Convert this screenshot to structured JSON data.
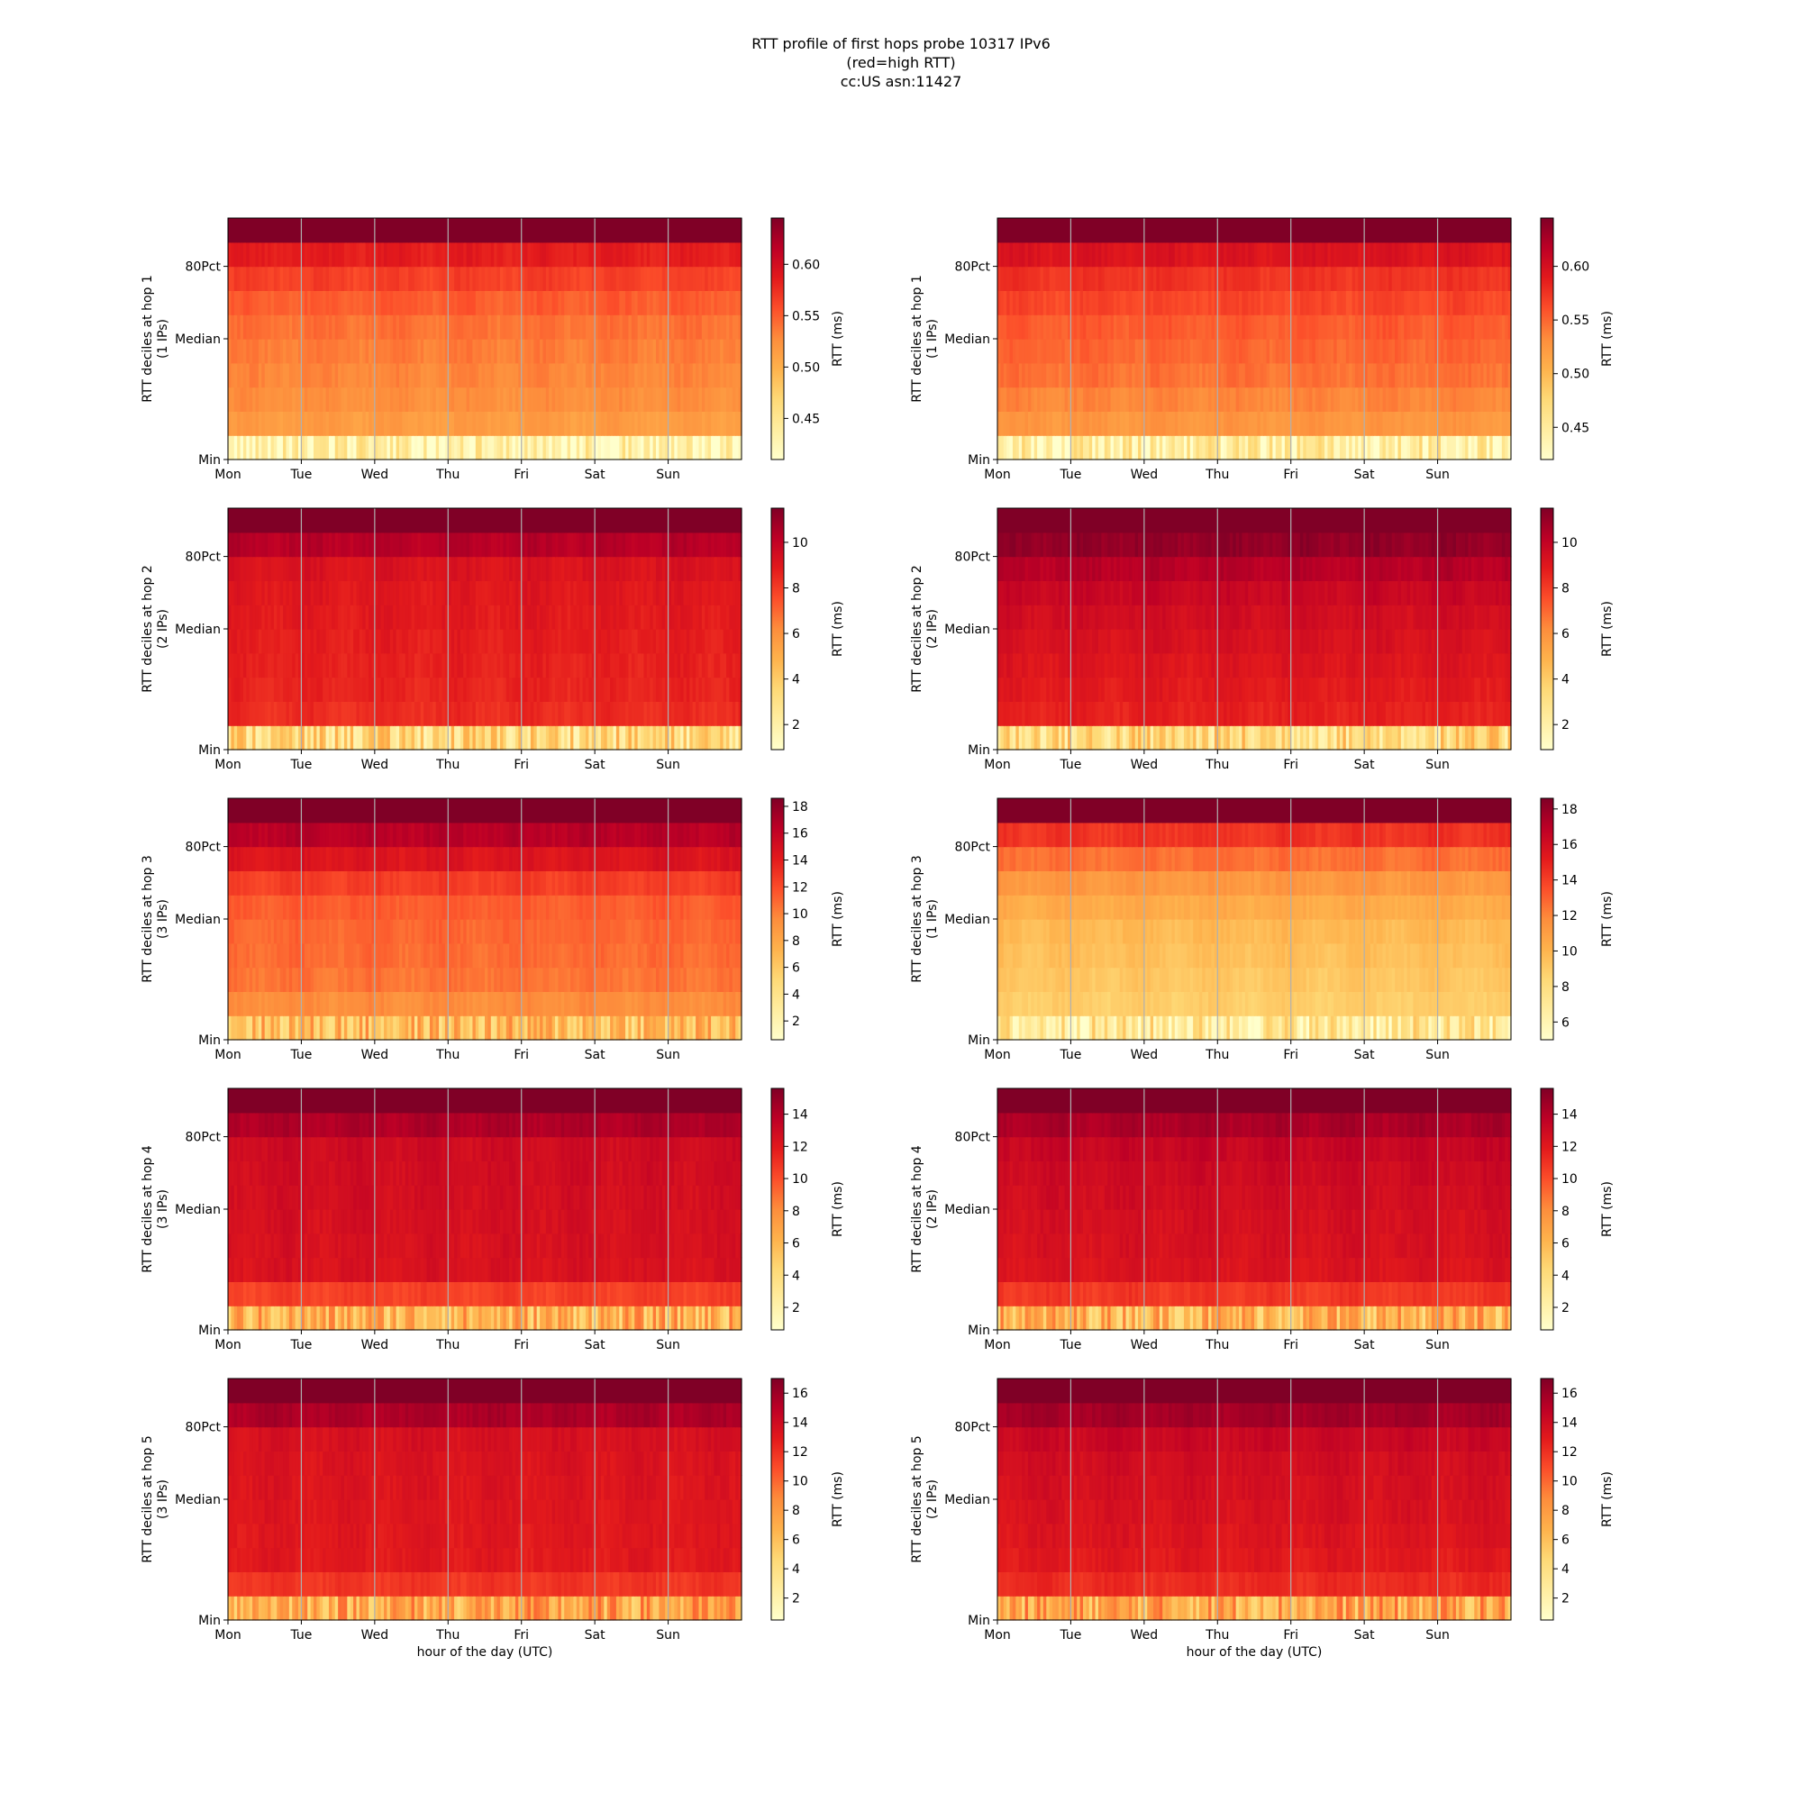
{
  "figure": {
    "title_lines": [
      "RTT profile of first hops probe 10317 IPv6",
      "(red=high RTT)",
      "cc:US asn:11427"
    ],
    "colormap": [
      "#ffffcc",
      "#ffeda0",
      "#fed976",
      "#feb24c",
      "#fd8d3c",
      "#fc4e2a",
      "#e31a1c",
      "#bd0026",
      "#800026"
    ],
    "gridline_color": "#b0b0b0"
  },
  "chart_data": [
    {
      "type": "heatmap",
      "hop": 1,
      "ylabel": "RTT deciles at hop 1",
      "ylabel2": "(1 IPs)",
      "xlabel": "",
      "x_ticks": [
        "Mon",
        "Tue",
        "Wed",
        "Thu",
        "Fri",
        "Sat",
        "Sun"
      ],
      "y_ticks": [
        "Min",
        "Median",
        "80Pct"
      ],
      "colorbar_label": "RTT (ms)",
      "colorbar_ticks": [
        "0.45",
        "0.50",
        "0.55",
        "0.60"
      ],
      "colorbar_range": [
        0.41,
        0.645
      ],
      "decile_levels": [
        0.425,
        0.515,
        0.525,
        0.53,
        0.535,
        0.54,
        0.55,
        0.565,
        0.585,
        0.645
      ]
    },
    {
      "type": "heatmap",
      "hop": 1,
      "ylabel": "RTT deciles at hop 1",
      "ylabel2": "(1 IPs)",
      "xlabel": "",
      "x_ticks": [
        "Mon",
        "Tue",
        "Wed",
        "Thu",
        "Fri",
        "Sat",
        "Sun"
      ],
      "y_ticks": [
        "Min",
        "Median",
        "80Pct"
      ],
      "colorbar_label": "RTT (ms)",
      "colorbar_ticks": [
        "0.45",
        "0.50",
        "0.55",
        "0.60"
      ],
      "colorbar_range": [
        0.42,
        0.645
      ],
      "decile_levels": [
        0.44,
        0.525,
        0.535,
        0.545,
        0.55,
        0.555,
        0.565,
        0.575,
        0.595,
        0.645
      ]
    },
    {
      "type": "heatmap",
      "hop": 2,
      "ylabel": "RTT deciles at hop 2",
      "ylabel2": "(2 IPs)",
      "xlabel": "",
      "x_ticks": [
        "Mon",
        "Tue",
        "Wed",
        "Thu",
        "Fri",
        "Sat",
        "Sun"
      ],
      "y_ticks": [
        "Min",
        "Median",
        "80Pct"
      ],
      "colorbar_label": "RTT (ms)",
      "colorbar_ticks": [
        "2",
        "4",
        "6",
        "8",
        "10"
      ],
      "colorbar_range": [
        0.9,
        11.5
      ],
      "decile_levels": [
        3.2,
        8.4,
        8.6,
        8.7,
        8.8,
        8.9,
        9.0,
        9.2,
        10.3,
        11.5
      ]
    },
    {
      "type": "heatmap",
      "hop": 2,
      "ylabel": "RTT deciles at hop 2",
      "ylabel2": "(2 IPs)",
      "xlabel": "",
      "x_ticks": [
        "Mon",
        "Tue",
        "Wed",
        "Thu",
        "Fri",
        "Sat",
        "Sun"
      ],
      "y_ticks": [
        "Min",
        "Median",
        "80Pct"
      ],
      "colorbar_label": "RTT (ms)",
      "colorbar_ticks": [
        "2",
        "4",
        "6",
        "8",
        "10"
      ],
      "colorbar_range": [
        0.9,
        11.5
      ],
      "decile_levels": [
        3.2,
        8.7,
        8.9,
        9.1,
        9.3,
        9.5,
        9.8,
        10.3,
        11.1,
        11.5
      ]
    },
    {
      "type": "heatmap",
      "hop": 3,
      "ylabel": "RTT deciles at hop 3",
      "ylabel2": "(3 IPs)",
      "xlabel": "",
      "x_ticks": [
        "Mon",
        "Tue",
        "Wed",
        "Thu",
        "Fri",
        "Sat",
        "Sun"
      ],
      "y_ticks": [
        "Min",
        "Median",
        "80Pct"
      ],
      "colorbar_label": "RTT (ms)",
      "colorbar_ticks": [
        "2",
        "4",
        "6",
        "8",
        "10",
        "12",
        "14",
        "16",
        "18"
      ],
      "colorbar_range": [
        0.6,
        18.6
      ],
      "decile_levels": [
        6.5,
        9.5,
        10.5,
        10.8,
        11.0,
        11.4,
        12.6,
        14.6,
        16.5,
        18.6
      ]
    },
    {
      "type": "heatmap",
      "hop": 3,
      "ylabel": "RTT deciles at hop 3",
      "ylabel2": "(1 IPs)",
      "xlabel": "",
      "x_ticks": [
        "Mon",
        "Tue",
        "Wed",
        "Thu",
        "Fri",
        "Sat",
        "Sun"
      ],
      "y_ticks": [
        "Min",
        "Median",
        "80Pct"
      ],
      "colorbar_label": "RTT (ms)",
      "colorbar_ticks": [
        "6",
        "8",
        "10",
        "12",
        "14",
        "16",
        "18"
      ],
      "colorbar_range": [
        5.0,
        18.6
      ],
      "decile_levels": [
        6.8,
        8.9,
        9.2,
        9.5,
        9.8,
        10.4,
        11.3,
        12.6,
        14.4,
        18.6
      ]
    },
    {
      "type": "heatmap",
      "hop": 4,
      "ylabel": "RTT deciles at hop 4",
      "ylabel2": "(3 IPs)",
      "xlabel": "",
      "x_ticks": [
        "Mon",
        "Tue",
        "Wed",
        "Thu",
        "Fri",
        "Sat",
        "Sun"
      ],
      "y_ticks": [
        "Min",
        "Median",
        "80Pct"
      ],
      "colorbar_label": "RTT (ms)",
      "colorbar_ticks": [
        "2",
        "4",
        "6",
        "8",
        "10",
        "12",
        "14"
      ],
      "colorbar_range": [
        0.6,
        15.6
      ],
      "decile_levels": [
        6.0,
        10.5,
        12.4,
        12.5,
        12.6,
        12.7,
        12.8,
        12.9,
        14.2,
        15.6
      ]
    },
    {
      "type": "heatmap",
      "hop": 4,
      "ylabel": "RTT deciles at hop 4",
      "ylabel2": "(2 IPs)",
      "xlabel": "",
      "x_ticks": [
        "Mon",
        "Tue",
        "Wed",
        "Thu",
        "Fri",
        "Sat",
        "Sun"
      ],
      "y_ticks": [
        "Min",
        "Median",
        "80Pct"
      ],
      "colorbar_label": "RTT (ms)",
      "colorbar_ticks": [
        "2",
        "4",
        "6",
        "8",
        "10",
        "12",
        "14"
      ],
      "colorbar_range": [
        0.6,
        15.6
      ],
      "decile_levels": [
        6.0,
        10.8,
        12.3,
        12.5,
        12.6,
        12.8,
        13.0,
        13.3,
        14.3,
        15.6
      ]
    },
    {
      "type": "heatmap",
      "hop": 5,
      "ylabel": "RTT deciles at hop 5",
      "ylabel2": "(3 IPs)",
      "xlabel": "hour of the day (UTC)",
      "x_ticks": [
        "Mon",
        "Tue",
        "Wed",
        "Thu",
        "Fri",
        "Sat",
        "Sun"
      ],
      "y_ticks": [
        "Min",
        "Median",
        "80Pct"
      ],
      "colorbar_label": "RTT (ms)",
      "colorbar_ticks": [
        "2",
        "4",
        "6",
        "8",
        "10",
        "12",
        "14",
        "16"
      ],
      "colorbar_range": [
        0.5,
        17.0
      ],
      "decile_levels": [
        7.0,
        11.8,
        13.0,
        13.1,
        13.2,
        13.3,
        13.4,
        13.6,
        15.5,
        17.0
      ]
    },
    {
      "type": "heatmap",
      "hop": 5,
      "ylabel": "RTT deciles at hop 5",
      "ylabel2": "(2 IPs)",
      "xlabel": "hour of the day (UTC)",
      "x_ticks": [
        "Mon",
        "Tue",
        "Wed",
        "Thu",
        "Fri",
        "Sat",
        "Sun"
      ],
      "y_ticks": [
        "Min",
        "Median",
        "80Pct"
      ],
      "colorbar_label": "RTT (ms)",
      "colorbar_ticks": [
        "2",
        "4",
        "6",
        "8",
        "10",
        "12",
        "14",
        "16"
      ],
      "colorbar_range": [
        0.5,
        17.0
      ],
      "decile_levels": [
        7.0,
        12.2,
        13.0,
        13.3,
        13.5,
        13.7,
        13.9,
        14.3,
        15.8,
        17.0
      ]
    }
  ]
}
